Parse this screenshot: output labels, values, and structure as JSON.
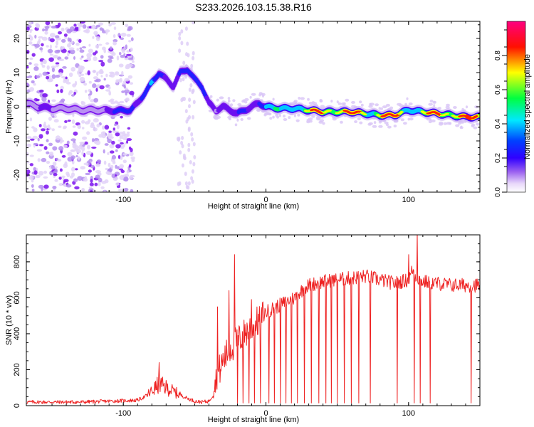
{
  "figure_title": "S233.2026.103.15.38.R16",
  "chart_data": [
    {
      "type": "heatmap",
      "title": "S233.2026.103.15.38.R16",
      "xlabel": "Height of straight line (km)",
      "ylabel": "Frequency (Hz)",
      "xlim": [
        -168,
        150
      ],
      "ylim": [
        -25,
        25
      ],
      "x_ticks": [
        -100,
        0,
        100
      ],
      "x_tick_labels": [
        "-100",
        "0",
        "100"
      ],
      "y_ticks": [
        -20,
        -10,
        0,
        10,
        20
      ],
      "y_tick_labels": [
        "-20",
        "-10",
        "0",
        "10",
        "20"
      ],
      "colorbar": {
        "label": "Normalized spectral amplitude",
        "range": [
          0,
          1
        ],
        "ticks": [
          0.0,
          0.2,
          0.4,
          0.6,
          0.8
        ],
        "tick_labels": [
          "0.0",
          "0.2",
          "0.4",
          "0.6",
          "0.8"
        ],
        "colors": [
          "#ffffff",
          "#c8a8f0",
          "#7000ff",
          "#0000ff",
          "#00e8ff",
          "#00ff40",
          "#ffff00",
          "#ff0000",
          "#ff0080"
        ]
      },
      "ridge": {
        "name": "Dominant frequency ridge",
        "x": [
          -168,
          -160,
          -150,
          -140,
          -130,
          -120,
          -105,
          -95,
          -90,
          -85,
          -80,
          -75,
          -70,
          -65,
          -60,
          -55,
          -50,
          -45,
          -40,
          -35,
          -30,
          -25,
          -20,
          -15,
          -10,
          -5,
          0,
          10,
          20,
          30,
          40,
          50,
          60,
          70,
          80,
          90,
          100,
          110,
          120,
          130,
          140,
          148
        ],
        "freq": [
          1,
          0,
          -0.5,
          -0.5,
          -1,
          -1,
          -1.2,
          -1,
          1,
          4,
          7,
          10,
          8,
          6,
          10,
          11,
          8,
          6,
          1,
          -1,
          0,
          -1,
          -2,
          -1,
          0,
          1,
          0,
          -0.5,
          -0.5,
          -1,
          -1.5,
          -1.5,
          -1.5,
          -2,
          -2.5,
          -2.5,
          -1,
          -1.5,
          -2,
          -2.5,
          -3,
          -3
        ],
        "amp": [
          0.3,
          0.25,
          0.3,
          0.25,
          0.25,
          0.25,
          0.4,
          0.5,
          0.45,
          0.55,
          0.5,
          0.4,
          0.35,
          0.35,
          0.55,
          0.5,
          0.45,
          0.4,
          0.4,
          0.35,
          0.4,
          0.35,
          0.35,
          0.4,
          0.45,
          0.5,
          0.55,
          0.6,
          0.65,
          0.7,
          0.8,
          0.85,
          0.8,
          0.75,
          0.85,
          0.8,
          0.65,
          0.7,
          0.8,
          0.85,
          0.85,
          0.8
        ]
      }
    },
    {
      "type": "line",
      "xlabel": "Height of straight line (km)",
      "ylabel": "SNR (10 * v/v)",
      "xlim": [
        -168,
        150
      ],
      "ylim": [
        0,
        950
      ],
      "x_ticks": [
        -100,
        0,
        100
      ],
      "x_tick_labels": [
        "-100",
        "0",
        "100"
      ],
      "y_ticks": [
        0,
        200,
        400,
        600,
        800
      ],
      "y_tick_labels": [
        "0",
        "200",
        "400",
        "600",
        "800"
      ],
      "color": "#ee2222",
      "series": [
        {
          "name": "SNR",
          "x": [
            -168,
            -150,
            -130,
            -110,
            -90,
            -85,
            -80,
            -75,
            -70,
            -65,
            -60,
            -55,
            -50,
            -45,
            -40,
            -37,
            -35,
            -30,
            -25,
            -20,
            -15,
            -10,
            -5,
            0,
            5,
            10,
            15,
            20,
            25,
            30,
            40,
            50,
            60,
            70,
            80,
            90,
            95,
            100,
            103,
            105,
            110,
            120,
            130,
            140,
            150
          ],
          "y": [
            20,
            20,
            20,
            25,
            30,
            50,
            80,
            120,
            100,
            80,
            60,
            40,
            25,
            20,
            25,
            60,
            150,
            250,
            320,
            360,
            400,
            440,
            470,
            520,
            540,
            560,
            580,
            600,
            640,
            670,
            690,
            700,
            710,
            720,
            700,
            680,
            690,
            700,
            760,
            720,
            690,
            680,
            670,
            670,
            670
          ],
          "spikes": [
            {
              "x": -75,
              "y": 240
            },
            {
              "x": -34,
              "y": 550
            },
            {
              "x": -26,
              "y": 640
            },
            {
              "x": -22,
              "y": 840
            },
            {
              "x": -10,
              "y": 590
            },
            {
              "x": 100,
              "y": 840
            },
            {
              "x": 106,
              "y": 955
            }
          ],
          "dropouts_x": [
            -20,
            -16,
            -12,
            -8,
            -4,
            2,
            6,
            10,
            14,
            18,
            22,
            27,
            32,
            37,
            42,
            46,
            50,
            55,
            60,
            65,
            73,
            92,
            104,
            108,
            115,
            144
          ]
        }
      ]
    }
  ]
}
